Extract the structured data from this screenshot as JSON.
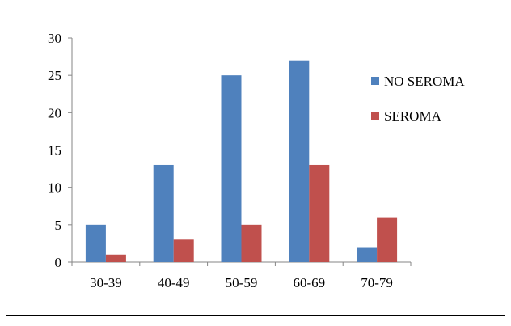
{
  "chart_data": {
    "type": "bar",
    "categories": [
      "30-39",
      "40-49",
      "50-59",
      "60-69",
      "70-79"
    ],
    "series": [
      {
        "name": "NO SEROMA",
        "values": [
          5,
          13,
          25,
          27,
          2
        ],
        "color": "#4f81bd"
      },
      {
        "name": "SEROMA",
        "values": [
          1,
          3,
          5,
          13,
          6
        ],
        "color": "#c0504d"
      }
    ],
    "ylim": [
      0,
      30
    ],
    "yticks": [
      0,
      5,
      10,
      15,
      20,
      25,
      30
    ],
    "grid": false,
    "legend": "right"
  }
}
